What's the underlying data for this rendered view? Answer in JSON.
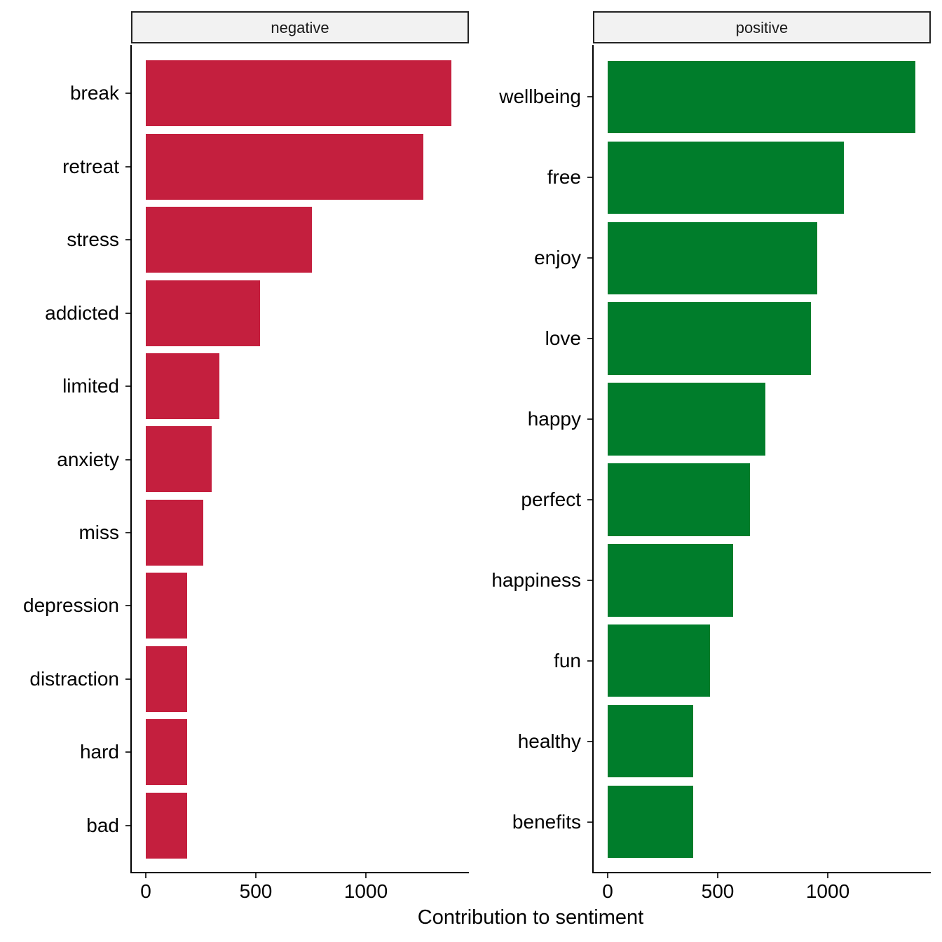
{
  "chart_data": {
    "type": "bar",
    "orientation": "horizontal",
    "faceted": true,
    "xlabel": "Contribution to sentiment",
    "ylabel": "",
    "xlim": [
      0,
      1450
    ],
    "x_ticks": [
      0,
      500,
      1000
    ],
    "grid": false,
    "legend": "none",
    "panels": [
      {
        "title": "negative",
        "color": "#c41f3e",
        "categories": [
          "break",
          "retreat",
          "stress",
          "addicted",
          "limited",
          "anxiety",
          "miss",
          "depression",
          "distraction",
          "hard",
          "bad"
        ],
        "values": [
          1389,
          1261,
          755,
          519,
          334,
          299,
          261,
          188,
          188,
          188,
          188
        ]
      },
      {
        "title": "positive",
        "color": "#007d2b",
        "categories": [
          "wellbeing",
          "free",
          "enjoy",
          "love",
          "happy",
          "perfect",
          "happiness",
          "fun",
          "healthy",
          "benefits"
        ],
        "values": [
          1398,
          1073,
          952,
          924,
          718,
          646,
          570,
          465,
          389,
          389
        ]
      }
    ]
  },
  "tick_labels": [
    "0",
    "500",
    "1000"
  ],
  "x_title": "Contribution to sentiment"
}
